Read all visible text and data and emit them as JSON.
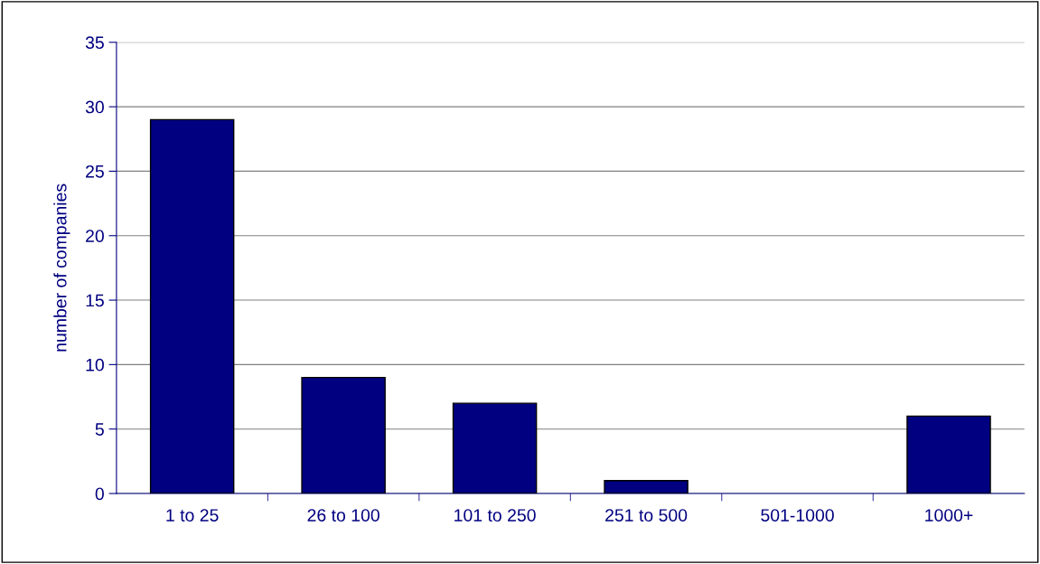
{
  "chart_data": {
    "type": "bar",
    "ylabel": "number of companies",
    "categories": [
      "1 to 25",
      "26 to 100",
      "101 to 250",
      "251 to 500",
      "501-1000",
      "1000+"
    ],
    "values": [
      29,
      9,
      7,
      1,
      0,
      6
    ],
    "color": "#000080",
    "ylim": [
      0,
      35
    ],
    "yticks": [
      0,
      5,
      10,
      15,
      20,
      25,
      30,
      35
    ],
    "grid": "y"
  }
}
